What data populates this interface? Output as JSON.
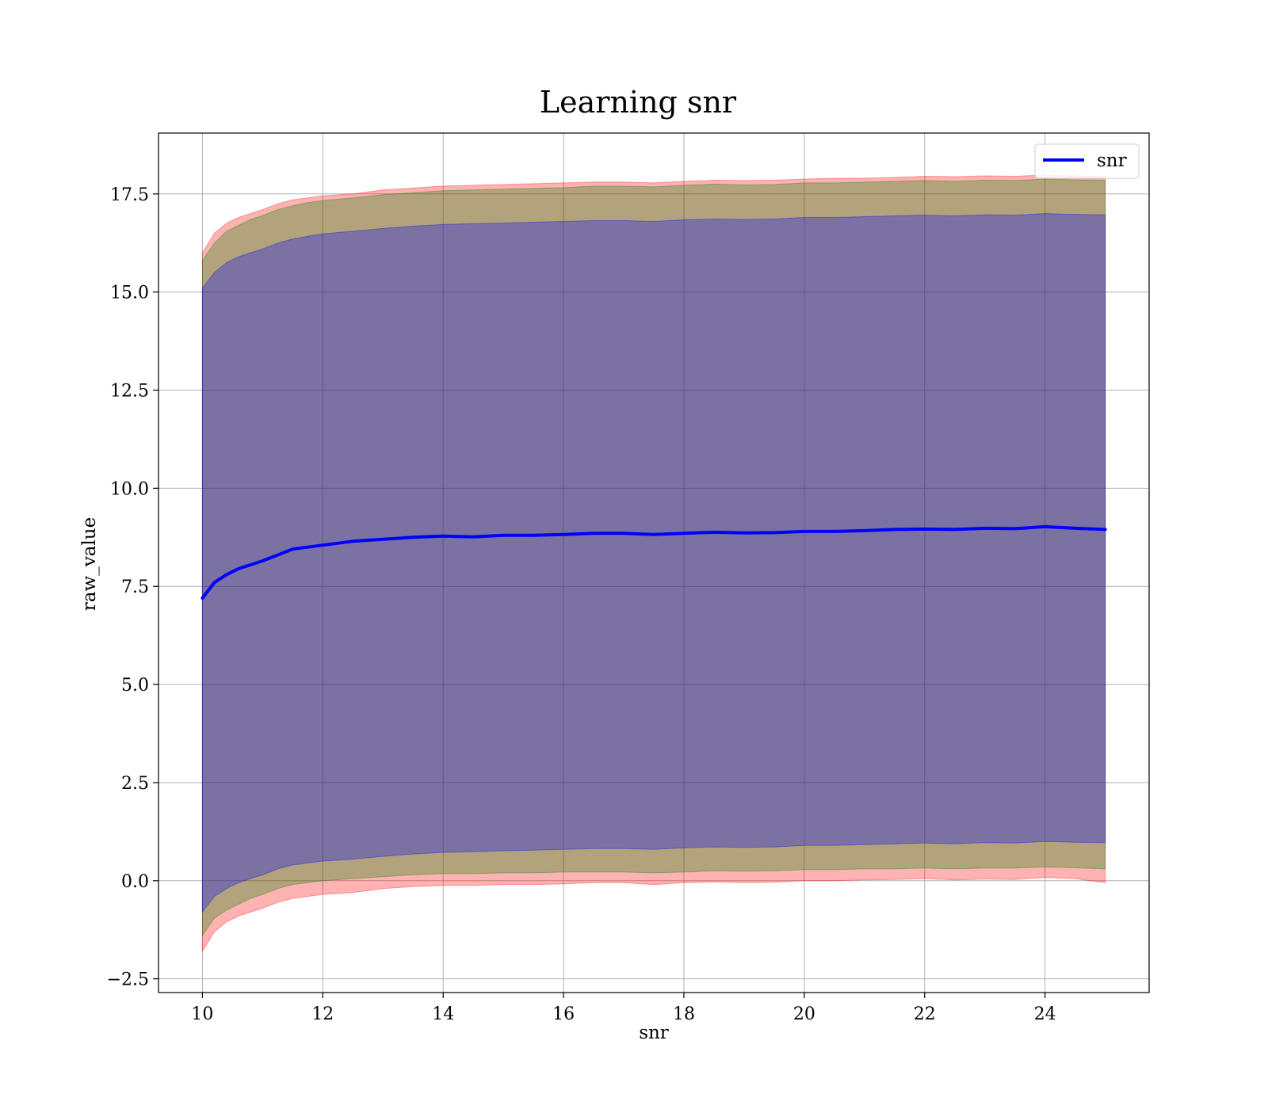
{
  "chart_data": {
    "type": "line",
    "title": "Learning snr",
    "xlabel": "snr",
    "ylabel": "raw_value",
    "xlim": [
      9.27,
      25.73
    ],
    "ylim": [
      -2.85,
      19.05
    ],
    "xticks": [
      10,
      12,
      14,
      16,
      18,
      20,
      22,
      24
    ],
    "xtick_labels": [
      "10",
      "12",
      "14",
      "16",
      "18",
      "20",
      "22",
      "24"
    ],
    "yticks": [
      -2.5,
      0.0,
      2.5,
      5.0,
      7.5,
      10.0,
      12.5,
      15.0,
      17.5
    ],
    "ytick_labels": [
      "−2.5",
      "0.0",
      "2.5",
      "5.0",
      "7.5",
      "10.0",
      "12.5",
      "15.0",
      "17.5"
    ],
    "grid": true,
    "legend": {
      "position": "top-right",
      "entries": [
        {
          "label": "snr",
          "color": "#0000ff"
        }
      ]
    },
    "x": [
      10,
      10.2,
      10.4,
      10.6,
      10.8,
      11,
      11.25,
      11.5,
      11.75,
      12,
      12.5,
      13,
      13.5,
      14,
      14.5,
      15,
      15.5,
      16,
      16.5,
      17,
      17.5,
      18,
      18.5,
      19,
      19.5,
      20,
      20.5,
      21,
      21.5,
      22,
      22.5,
      23,
      23.5,
      24,
      24.5,
      25
    ],
    "series": [
      {
        "name": "snr",
        "color": "#0000ff",
        "values": [
          7.2,
          7.6,
          7.8,
          7.95,
          8.05,
          8.15,
          8.3,
          8.45,
          8.5,
          8.55,
          8.65,
          8.7,
          8.75,
          8.78,
          8.76,
          8.8,
          8.8,
          8.82,
          8.85,
          8.85,
          8.82,
          8.85,
          8.88,
          8.86,
          8.87,
          8.9,
          8.9,
          8.92,
          8.95,
          8.96,
          8.95,
          8.98,
          8.97,
          9.02,
          8.98,
          8.95
        ]
      }
    ],
    "bands": [
      {
        "color": "#ff0000",
        "opacity": 0.3,
        "upper": [
          16.0,
          16.5,
          16.75,
          16.9,
          17.0,
          17.1,
          17.25,
          17.35,
          17.4,
          17.45,
          17.5,
          17.6,
          17.65,
          17.7,
          17.72,
          17.74,
          17.76,
          17.78,
          17.8,
          17.8,
          17.78,
          17.82,
          17.85,
          17.84,
          17.85,
          17.88,
          17.9,
          17.9,
          17.92,
          17.95,
          17.94,
          17.96,
          17.95,
          17.98,
          17.96,
          17.95
        ],
        "lower": [
          -1.8,
          -1.3,
          -1.05,
          -0.9,
          -0.8,
          -0.7,
          -0.55,
          -0.45,
          -0.4,
          -0.35,
          -0.3,
          -0.2,
          -0.15,
          -0.12,
          -0.12,
          -0.1,
          -0.1,
          -0.08,
          -0.05,
          -0.05,
          -0.1,
          -0.05,
          -0.03,
          -0.05,
          -0.04,
          0.0,
          0.0,
          0.02,
          0.03,
          0.05,
          0.02,
          0.04,
          0.03,
          0.08,
          0.05,
          -0.05
        ]
      },
      {
        "color": "#008000",
        "opacity": 0.3,
        "upper": [
          15.8,
          16.25,
          16.55,
          16.7,
          16.85,
          16.95,
          17.1,
          17.2,
          17.28,
          17.33,
          17.4,
          17.48,
          17.53,
          17.58,
          17.6,
          17.62,
          17.64,
          17.66,
          17.7,
          17.7,
          17.68,
          17.72,
          17.75,
          17.73,
          17.74,
          17.78,
          17.78,
          17.8,
          17.82,
          17.84,
          17.82,
          17.85,
          17.84,
          17.88,
          17.86,
          17.85
        ],
        "lower": [
          -1.4,
          -0.95,
          -0.75,
          -0.6,
          -0.45,
          -0.35,
          -0.2,
          -0.1,
          -0.05,
          0.0,
          0.05,
          0.1,
          0.15,
          0.18,
          0.18,
          0.2,
          0.2,
          0.22,
          0.22,
          0.22,
          0.2,
          0.22,
          0.25,
          0.24,
          0.25,
          0.28,
          0.28,
          0.3,
          0.3,
          0.32,
          0.3,
          0.32,
          0.32,
          0.35,
          0.33,
          0.3
        ]
      },
      {
        "color": "#0000ff",
        "opacity": 0.3,
        "upper": [
          15.1,
          15.5,
          15.75,
          15.9,
          16.0,
          16.1,
          16.25,
          16.35,
          16.42,
          16.48,
          16.55,
          16.62,
          16.68,
          16.72,
          16.74,
          16.76,
          16.78,
          16.8,
          16.82,
          16.82,
          16.8,
          16.84,
          16.86,
          16.85,
          16.86,
          16.9,
          16.9,
          16.92,
          16.94,
          16.96,
          16.94,
          16.97,
          16.96,
          17.0,
          16.98,
          16.97
        ],
        "lower": [
          -0.8,
          -0.4,
          -0.2,
          -0.05,
          0.05,
          0.15,
          0.3,
          0.4,
          0.45,
          0.5,
          0.55,
          0.62,
          0.68,
          0.72,
          0.74,
          0.76,
          0.78,
          0.8,
          0.82,
          0.82,
          0.8,
          0.84,
          0.86,
          0.85,
          0.86,
          0.9,
          0.9,
          0.92,
          0.94,
          0.96,
          0.94,
          0.97,
          0.96,
          1.0,
          0.98,
          0.97
        ]
      }
    ]
  }
}
